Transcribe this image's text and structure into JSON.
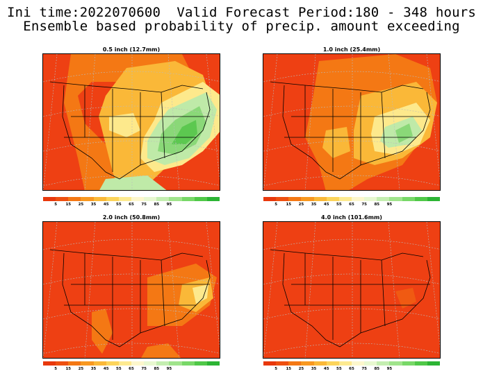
{
  "header": {
    "line1": "Ini time:2022070600  Valid Forecast Period:180 - 348 hours",
    "line2": "Ensemble based probability of precip. amount exceeding"
  },
  "panels": [
    {
      "title": "0.5 inch (12.7mm)"
    },
    {
      "title": "1.0 inch (25.4mm)"
    },
    {
      "title": "2.0 inch (50.8mm)"
    },
    {
      "title": "4.0 inch (101.6mm)"
    }
  ],
  "colorbar": {
    "colors": [
      "#e8380c",
      "#ee5010",
      "#f47814",
      "#f89820",
      "#fab838",
      "#fcd45a",
      "#fdea90",
      "#fdf7cc",
      "#e8f8d0",
      "#c4eeb0",
      "#a0e48c",
      "#78d868",
      "#50c848",
      "#2cb434"
    ],
    "labels": [
      "5",
      "15",
      "25",
      "35",
      "45",
      "55",
      "65",
      "75",
      "85",
      "95"
    ]
  },
  "colors": {
    "background": "#ffffff",
    "map_base": "#ee4013",
    "orange": "#f47814",
    "light_orange": "#fab838",
    "yellow": "#fde98c",
    "cream": "#fdf7cc",
    "light_green": "#bfeaa8",
    "green": "#8ad878",
    "dark_green": "#5cc850"
  }
}
